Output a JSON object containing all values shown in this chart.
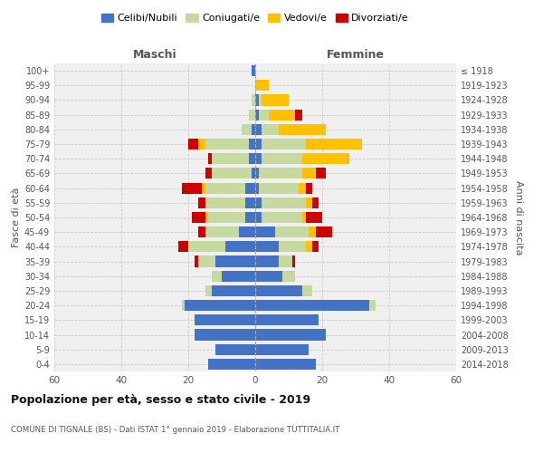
{
  "age_groups": [
    "0-4",
    "5-9",
    "10-14",
    "15-19",
    "20-24",
    "25-29",
    "30-34",
    "35-39",
    "40-44",
    "45-49",
    "50-54",
    "55-59",
    "60-64",
    "65-69",
    "70-74",
    "75-79",
    "80-84",
    "85-89",
    "90-94",
    "95-99",
    "100+"
  ],
  "birth_years": [
    "2014-2018",
    "2009-2013",
    "2004-2008",
    "1999-2003",
    "1994-1998",
    "1989-1993",
    "1984-1988",
    "1979-1983",
    "1974-1978",
    "1969-1973",
    "1964-1968",
    "1959-1963",
    "1954-1958",
    "1949-1953",
    "1944-1948",
    "1939-1943",
    "1934-1938",
    "1929-1933",
    "1924-1928",
    "1919-1923",
    "≤ 1918"
  ],
  "maschi": {
    "celibi": [
      14,
      12,
      18,
      18,
      21,
      13,
      10,
      12,
      9,
      5,
      3,
      3,
      3,
      1,
      2,
      2,
      1,
      0,
      0,
      0,
      1
    ],
    "coniugati": [
      0,
      0,
      0,
      0,
      1,
      2,
      3,
      5,
      11,
      10,
      11,
      12,
      12,
      12,
      11,
      13,
      3,
      2,
      1,
      0,
      0
    ],
    "vedovi": [
      0,
      0,
      0,
      0,
      0,
      0,
      0,
      0,
      0,
      0,
      1,
      0,
      1,
      0,
      0,
      2,
      0,
      0,
      0,
      0,
      0
    ],
    "divorziati": [
      0,
      0,
      0,
      0,
      0,
      0,
      0,
      1,
      3,
      2,
      4,
      2,
      6,
      2,
      1,
      3,
      0,
      0,
      0,
      0,
      0
    ]
  },
  "femmine": {
    "nubili": [
      18,
      16,
      21,
      19,
      34,
      14,
      8,
      7,
      7,
      6,
      2,
      2,
      1,
      1,
      2,
      2,
      2,
      1,
      1,
      0,
      0
    ],
    "coniugate": [
      0,
      0,
      0,
      0,
      2,
      3,
      4,
      4,
      8,
      10,
      12,
      13,
      12,
      13,
      12,
      13,
      5,
      3,
      1,
      0,
      0
    ],
    "vedove": [
      0,
      0,
      0,
      0,
      0,
      0,
      0,
      0,
      2,
      2,
      1,
      2,
      2,
      4,
      14,
      17,
      14,
      8,
      8,
      4,
      0
    ],
    "divorziate": [
      0,
      0,
      0,
      0,
      0,
      0,
      0,
      1,
      2,
      5,
      5,
      2,
      2,
      3,
      0,
      0,
      0,
      2,
      0,
      0,
      0
    ]
  },
  "colors": {
    "celibi": "#4472c4",
    "coniugati": "#c5d9a0",
    "vedovi": "#ffc000",
    "divorziati": "#cc0000"
  },
  "title": "Popolazione per età, sesso e stato civile - 2019",
  "subtitle": "COMUNE DI TIGNALE (BS) - Dati ISTAT 1° gennaio 2019 - Elaborazione TUTTITALIA.IT",
  "ylabel": "Fasce di età",
  "ylabel_right": "Anni di nascita",
  "xlabel_left": "Maschi",
  "xlabel_right": "Femmine",
  "xlim": 60,
  "legend_labels": [
    "Celibi/Nubili",
    "Coniugati/e",
    "Vedovi/e",
    "Divorziati/e"
  ],
  "bg_color": "#f0f0f0",
  "bar_height": 0.75
}
